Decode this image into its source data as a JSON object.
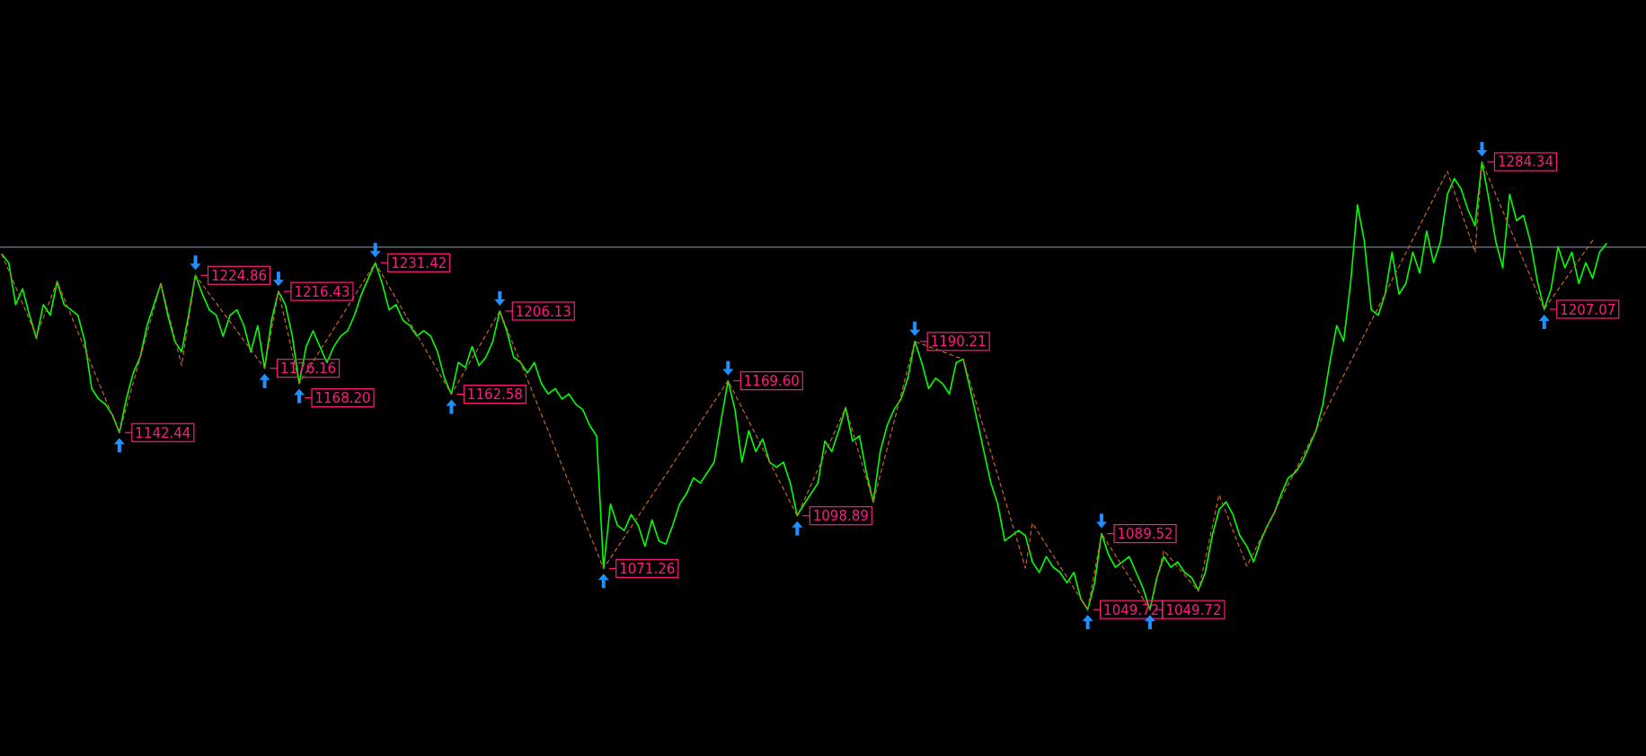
{
  "chart_data": {
    "type": "line",
    "ylim": [
      973,
      1369.1
    ],
    "tick_labels": false,
    "categories": [
      null,
      null,
      null,
      null,
      null,
      null,
      null,
      null,
      null,
      null,
      null,
      null,
      null,
      null,
      null,
      null,
      null,
      null,
      null,
      null,
      null,
      null,
      null,
      null,
      null,
      null,
      null,
      null,
      null,
      null,
      null,
      null,
      null,
      null,
      null,
      null,
      null,
      null,
      null,
      null,
      null,
      null,
      null,
      null,
      null,
      null,
      null,
      null,
      null,
      null,
      null,
      null,
      null,
      null,
      null,
      null,
      null,
      null,
      null,
      null,
      null,
      null,
      null,
      null,
      null,
      null,
      null,
      null,
      null,
      null,
      null,
      null,
      null,
      null,
      null,
      null,
      null,
      null,
      null,
      null,
      null,
      null,
      null,
      null,
      null,
      null,
      null,
      null,
      null,
      null,
      null,
      null,
      null,
      null,
      null,
      null,
      null,
      null,
      null,
      null,
      null,
      null,
      null,
      null,
      null,
      null,
      null,
      null,
      null,
      null,
      null,
      null,
      null,
      null,
      null,
      null,
      null,
      null,
      null,
      null,
      null,
      null,
      null,
      null,
      null,
      null,
      null,
      null,
      null,
      null,
      null,
      null,
      null,
      null,
      null,
      null,
      null,
      null,
      null,
      null,
      null,
      null,
      null,
      null,
      null,
      null,
      null,
      null,
      null,
      null,
      null,
      null,
      null,
      null,
      null,
      null,
      null,
      null,
      null,
      null,
      null,
      null,
      null,
      null,
      null,
      null,
      null,
      null,
      null,
      null,
      null,
      null,
      null,
      null,
      null,
      null,
      null,
      null,
      null,
      null,
      null,
      null,
      null,
      null,
      null,
      null,
      null,
      null,
      null,
      null,
      null,
      null,
      null,
      null,
      null,
      null,
      null,
      null,
      null,
      null,
      null,
      null,
      null,
      null,
      null,
      null,
      null,
      null,
      null,
      null,
      null,
      null,
      null,
      null,
      null,
      null,
      null,
      null,
      null,
      null,
      null,
      null,
      null,
      null,
      null,
      null,
      null,
      null,
      null,
      null,
      null,
      null,
      null
    ],
    "series": [
      {
        "type": "line",
        "color": "#00ff00",
        "values": [
          1235.9,
          1231.5,
          1209.5,
          1217.8,
          1204.0,
          1191.9,
          1209.5,
          1204.0,
          1221.6,
          1209.5,
          1206.8,
          1204.0,
          1190.3,
          1165.5,
          1160.0,
          1157.2,
          1151.7,
          1142.44,
          1160.0,
          1173.7,
          1182.0,
          1198.5,
          1209.5,
          1220.5,
          1204.0,
          1190.3,
          1184.7,
          1204.0,
          1224.86,
          1215.0,
          1206.8,
          1204.0,
          1193.0,
          1204.0,
          1206.8,
          1198.5,
          1184.7,
          1198.5,
          1176.16,
          1201.3,
          1216.43,
          1209.5,
          1193.0,
          1168.2,
          1187.5,
          1195.8,
          1187.5,
          1179.2,
          1187.5,
          1193.0,
          1195.8,
          1204.0,
          1215.0,
          1223.3,
          1231.42,
          1220.5,
          1206.8,
          1209.5,
          1201.3,
          1198.5,
          1193.0,
          1195.8,
          1193.0,
          1184.7,
          1171.0,
          1162.58,
          1179.2,
          1176.5,
          1187.5,
          1177.6,
          1182.0,
          1190.3,
          1206.13,
          1195.8,
          1182.0,
          1179.2,
          1173.7,
          1179.2,
          1168.2,
          1162.7,
          1165.5,
          1160.0,
          1162.7,
          1157.2,
          1154.5,
          1146.2,
          1140.7,
          1071.26,
          1105.0,
          1093.9,
          1091.2,
          1099.5,
          1093.9,
          1082.9,
          1096.7,
          1085.7,
          1084.0,
          1093.9,
          1105.0,
          1110.5,
          1118.7,
          1116.0,
          1121.5,
          1127.0,
          1149.0,
          1169.6,
          1154.5,
          1127.0,
          1143.5,
          1132.5,
          1139.1,
          1127.0,
          1124.2,
          1127.0,
          1116.0,
          1098.89,
          1105.0,
          1110.5,
          1116.0,
          1138.0,
          1132.5,
          1143.5,
          1155.6,
          1138.0,
          1140.7,
          1121.5,
          1106.1,
          1132.5,
          1146.2,
          1154.5,
          1160.0,
          1171.0,
          1190.21,
          1179.2,
          1165.5,
          1171.0,
          1168.2,
          1162.7,
          1179.2,
          1180.9,
          1165.5,
          1149.0,
          1132.5,
          1116.0,
          1105.0,
          1085.7,
          1088.4,
          1091.2,
          1088.4,
          1074.7,
          1069.2,
          1077.5,
          1071.9,
          1069.2,
          1063.7,
          1069.2,
          1055.4,
          1049.72,
          1063.7,
          1089.52,
          1078.5,
          1071.9,
          1074.7,
          1077.5,
          1069.2,
          1061.0,
          1049.72,
          1066.5,
          1077.5,
          1071.9,
          1074.7,
          1069.2,
          1066.5,
          1059.9,
          1069.2,
          1088.4,
          1102.2,
          1106.1,
          1099.5,
          1088.4,
          1082.9,
          1074.7,
          1085.7,
          1093.9,
          1100.6,
          1110.5,
          1118.7,
          1121.5,
          1127.0,
          1135.2,
          1143.5,
          1157.2,
          1179.2,
          1198.5,
          1190.3,
          1220.5,
          1261.8,
          1242.5,
          1206.8,
          1204.0,
          1215.0,
          1237.0,
          1215.0,
          1220.5,
          1237.0,
          1226.0,
          1248.0,
          1231.5,
          1242.5,
          1267.3,
          1275.6,
          1270.0,
          1259.0,
          1250.8,
          1284.34,
          1264.6,
          1242.5,
          1228.8,
          1267.3,
          1253.5,
          1256.3,
          1242.5,
          1222.0,
          1207.07,
          1217.8,
          1239.8,
          1228.8,
          1237.0,
          1220.5,
          1231.5,
          1223.3,
          1237.0,
          1241.4
        ]
      },
      {
        "type": "line",
        "color": "#c8642a",
        "line_style": "dashed",
        "values": [
          1235.9,
          null,
          null,
          null,
          null,
          1193.0,
          null,
          null,
          1221.6,
          null,
          null,
          null,
          null,
          null,
          null,
          null,
          null,
          1142.44,
          null,
          null,
          null,
          null,
          null,
          1220.5,
          null,
          null,
          1177.6,
          null,
          1224.86,
          null,
          null,
          null,
          null,
          null,
          null,
          null,
          null,
          null,
          1176.16,
          null,
          1216.43,
          null,
          null,
          1168.2,
          null,
          null,
          null,
          null,
          null,
          null,
          null,
          null,
          null,
          null,
          1231.42,
          null,
          null,
          null,
          null,
          null,
          null,
          null,
          null,
          null,
          null,
          1162.58,
          null,
          null,
          null,
          null,
          null,
          null,
          1206.13,
          null,
          null,
          null,
          null,
          null,
          null,
          null,
          null,
          null,
          null,
          null,
          null,
          null,
          null,
          1071.26,
          null,
          null,
          null,
          null,
          null,
          null,
          null,
          null,
          null,
          null,
          null,
          null,
          null,
          null,
          null,
          null,
          null,
          1169.6,
          null,
          null,
          null,
          null,
          null,
          null,
          null,
          null,
          null,
          1098.89,
          null,
          null,
          null,
          null,
          null,
          null,
          1155.6,
          null,
          null,
          null,
          1106.1,
          null,
          null,
          null,
          null,
          null,
          1190.21,
          null,
          null,
          null,
          null,
          null,
          null,
          1180.9,
          null,
          null,
          null,
          null,
          null,
          null,
          null,
          null,
          1071.4,
          1095.0,
          null,
          null,
          null,
          null,
          null,
          null,
          null,
          1049.72,
          null,
          1089.52,
          null,
          null,
          null,
          null,
          null,
          null,
          1049.72,
          null,
          1080.7,
          null,
          null,
          null,
          null,
          1059.3,
          null,
          null,
          1109.9,
          null,
          null,
          null,
          1072.5,
          null,
          null,
          null,
          null,
          null,
          null,
          null,
          null,
          null,
          null,
          null,
          null,
          null,
          null,
          null,
          null,
          null,
          null,
          null,
          null,
          null,
          null,
          null,
          null,
          null,
          null,
          null,
          null,
          1279.4,
          null,
          null,
          null,
          1237.0,
          1284.34,
          null,
          null,
          null,
          null,
          null,
          null,
          null,
          null,
          1207.07,
          null,
          null,
          null,
          null,
          null,
          null,
          1243.1,
          null,
          null
        ],
        "value_labels": [
          null,
          null,
          null,
          null,
          null,
          null,
          null,
          null,
          null,
          null,
          null,
          null,
          null,
          null,
          null,
          null,
          null,
          "1142.44",
          null,
          null,
          null,
          null,
          null,
          null,
          null,
          null,
          null,
          null,
          "1224.86",
          null,
          null,
          null,
          null,
          null,
          null,
          null,
          null,
          null,
          "1176.16",
          null,
          "1216.43",
          null,
          null,
          "1168.20",
          null,
          null,
          null,
          null,
          null,
          null,
          null,
          null,
          null,
          null,
          "1231.42",
          null,
          null,
          null,
          null,
          null,
          null,
          null,
          null,
          null,
          null,
          "1162.58",
          null,
          null,
          null,
          null,
          null,
          null,
          "1206.13",
          null,
          null,
          null,
          null,
          null,
          null,
          null,
          null,
          null,
          null,
          null,
          null,
          null,
          null,
          "1071.26",
          null,
          null,
          null,
          null,
          null,
          null,
          null,
          null,
          null,
          null,
          null,
          null,
          null,
          null,
          null,
          null,
          null,
          "1169.60",
          null,
          null,
          null,
          null,
          null,
          null,
          null,
          null,
          null,
          "1098.89",
          null,
          null,
          null,
          null,
          null,
          null,
          null,
          null,
          null,
          null,
          null,
          null,
          null,
          null,
          null,
          null,
          "1190.21",
          null,
          null,
          null,
          null,
          null,
          null,
          null,
          null,
          null,
          null,
          null,
          null,
          null,
          null,
          null,
          null,
          null,
          null,
          null,
          null,
          null,
          null,
          null,
          null,
          "1049.72",
          null,
          "1089.52",
          null,
          null,
          null,
          null,
          null,
          null,
          "1049.72",
          null,
          null,
          null,
          null,
          null,
          null,
          null,
          null,
          null,
          null,
          null,
          null,
          null,
          null,
          null,
          null,
          null,
          null,
          null,
          null,
          null,
          null,
          null,
          null,
          null,
          null,
          null,
          null,
          null,
          null,
          null,
          null,
          null,
          null,
          null,
          null,
          null,
          null,
          null,
          null,
          null,
          null,
          null,
          null,
          null,
          null,
          null,
          "1284.34",
          null,
          null,
          null,
          null,
          null,
          null,
          null,
          null,
          "1207.07",
          null,
          null,
          null,
          null,
          null,
          null,
          null,
          null,
          null
        ]
      }
    ],
    "ref_lines": [
      {
        "axis": "y",
        "value": 1239.6,
        "color": "#8fa0b8"
      }
    ]
  }
}
